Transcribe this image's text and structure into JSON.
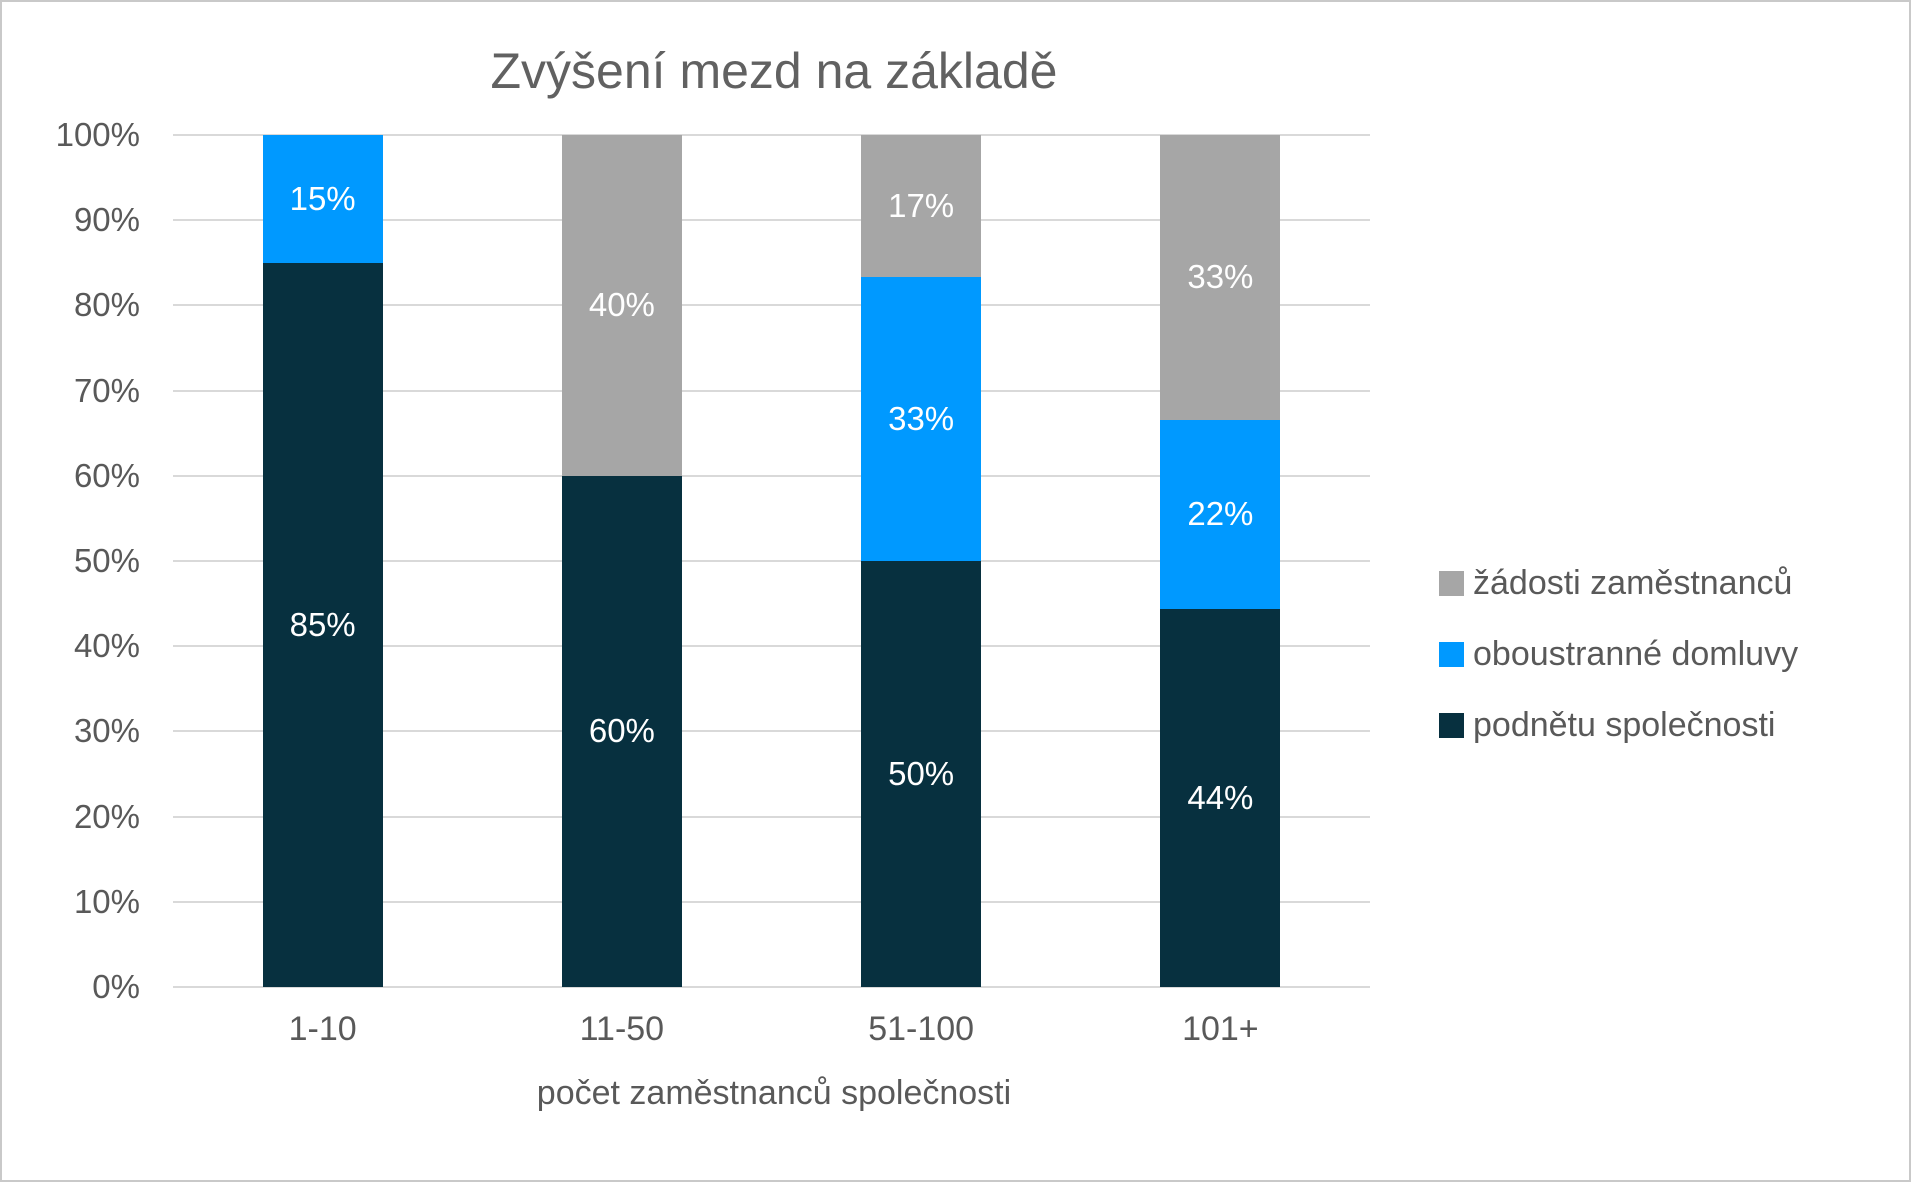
{
  "title": "Zvýšení mezd na základě",
  "chart_data": {
    "type": "bar",
    "subtype": "stacked-100-percent",
    "title": "Zvýšení mezd na základě",
    "xlabel": "počet zaměstnanců společnosti",
    "ylabel": "",
    "categories": [
      "1-10",
      "11-50",
      "51-100",
      "101+"
    ],
    "series": [
      {
        "name": "podnětu společnosti",
        "color": "#07303f",
        "values": [
          85,
          60,
          50,
          44.4
        ],
        "labels": [
          "85%",
          "60%",
          "50%",
          "44%"
        ]
      },
      {
        "name": "oboustranné domluvy",
        "color": "#0099ff",
        "values": [
          15,
          0,
          33.3,
          22.2
        ],
        "labels": [
          "15%",
          "",
          "33%",
          "22%"
        ]
      },
      {
        "name": "žádosti zaměstnanců",
        "color": "#a6a6a6",
        "values": [
          0,
          40,
          16.7,
          33.4
        ],
        "labels": [
          "",
          "40%",
          "17%",
          "33%"
        ]
      }
    ],
    "y_ticks": [
      "0%",
      "10%",
      "20%",
      "30%",
      "40%",
      "50%",
      "60%",
      "70%",
      "80%",
      "90%",
      "100%"
    ],
    "ylim": [
      0,
      100
    ],
    "grid": true,
    "legend_position": "right",
    "legend": [
      {
        "label": "žádosti zaměstnanců",
        "color": "#a6a6a6"
      },
      {
        "label": "oboustranné domluvy",
        "color": "#0099ff"
      },
      {
        "label": "podnětu společnosti",
        "color": "#07303f"
      }
    ]
  },
  "colors": {
    "gridline": "#d9d9d9",
    "axis_text": "#595959",
    "title_text": "#616161",
    "bar_label_text": "#ffffff",
    "background": "#ffffff"
  }
}
